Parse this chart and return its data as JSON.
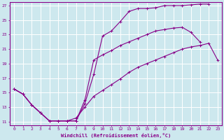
{
  "xlabel": "Windchill (Refroidissement éolien,°C)",
  "bg_color": "#cde8ee",
  "line_color": "#880088",
  "grid_color": "#ffffff",
  "xlim": [
    -0.5,
    23.5
  ],
  "ylim": [
    10.5,
    27.5
  ],
  "xticks": [
    0,
    1,
    2,
    3,
    4,
    5,
    6,
    7,
    8,
    9,
    10,
    11,
    12,
    13,
    14,
    15,
    16,
    17,
    18,
    19,
    20,
    21,
    22,
    23
  ],
  "yticks": [
    11,
    13,
    15,
    17,
    19,
    21,
    23,
    25,
    27
  ],
  "line1_x": [
    0,
    1,
    2,
    3,
    4,
    5,
    6,
    7,
    8,
    9,
    10,
    11,
    12,
    13,
    14,
    15,
    16,
    17,
    18,
    19,
    20,
    21,
    22
  ],
  "line1_y": [
    15.5,
    14.8,
    13.3,
    12.2,
    11.1,
    11.1,
    11.1,
    11.1,
    13.5,
    17.5,
    22.8,
    23.5,
    24.8,
    26.2,
    26.6,
    26.6,
    26.7,
    27.0,
    27.0,
    27.0,
    27.1,
    27.2,
    27.2
  ],
  "line2_x": [
    0,
    1,
    2,
    3,
    4,
    5,
    6,
    7,
    8,
    9,
    10,
    11,
    12,
    13,
    14,
    15,
    16,
    17,
    18,
    19,
    20,
    21
  ],
  "line2_y": [
    15.5,
    14.8,
    13.3,
    12.2,
    11.1,
    11.1,
    11.1,
    11.1,
    14.0,
    19.5,
    20.2,
    20.8,
    21.5,
    22.0,
    22.5,
    23.0,
    23.5,
    23.7,
    23.9,
    24.0,
    23.3,
    22.0
  ],
  "line3_x": [
    0,
    1,
    2,
    3,
    4,
    5,
    6,
    7,
    8,
    9,
    10,
    11,
    12,
    13,
    14,
    15,
    16,
    17,
    18,
    19,
    20,
    21,
    22,
    23
  ],
  "line3_y": [
    15.5,
    14.8,
    13.3,
    12.2,
    11.1,
    11.1,
    11.1,
    11.5,
    13.0,
    14.5,
    15.3,
    16.1,
    16.9,
    17.8,
    18.5,
    19.0,
    19.5,
    20.0,
    20.5,
    21.0,
    21.3,
    21.5,
    21.8,
    19.5
  ]
}
